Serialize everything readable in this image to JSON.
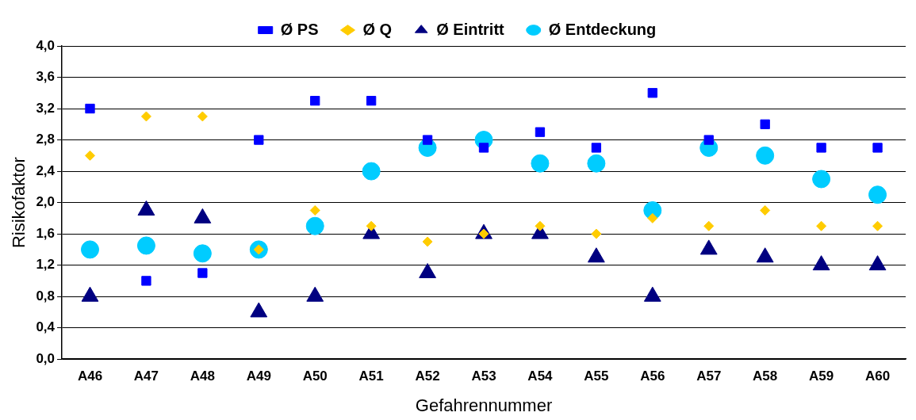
{
  "chart_data": {
    "type": "scatter",
    "xlabel": "Gefahrennummer",
    "ylabel": "Risikofaktor",
    "categories": [
      "A46",
      "A47",
      "A48",
      "A49",
      "A50",
      "A51",
      "A52",
      "A53",
      "A54",
      "A55",
      "A56",
      "A57",
      "A58",
      "A59",
      "A60"
    ],
    "series": [
      {
        "name": "Ø PS",
        "color": "#0000ff",
        "marker": "square",
        "values": [
          3.2,
          1.0,
          1.1,
          2.8,
          3.3,
          3.3,
          2.8,
          2.7,
          2.9,
          2.7,
          3.4,
          2.8,
          3.0,
          2.7,
          2.7
        ]
      },
      {
        "name": "Ø Q",
        "color": "#ffcc00",
        "marker": "diamond",
        "values": [
          2.6,
          3.1,
          3.1,
          1.4,
          1.9,
          1.7,
          1.5,
          1.6,
          1.7,
          1.6,
          1.8,
          1.7,
          1.9,
          1.7,
          1.7
        ]
      },
      {
        "name": "Ø Eintritt",
        "color": "#000080",
        "marker": "triangle",
        "values": [
          0.8,
          1.9,
          1.8,
          0.6,
          0.8,
          1.6,
          1.1,
          1.6,
          1.6,
          1.3,
          0.8,
          1.4,
          1.3,
          1.2,
          1.2
        ]
      },
      {
        "name": "Ø Entdeckung",
        "color": "#00ccff",
        "marker": "circle",
        "values": [
          1.4,
          1.45,
          1.35,
          1.4,
          1.7,
          2.4,
          2.7,
          2.8,
          2.5,
          2.5,
          1.9,
          2.7,
          2.6,
          2.3,
          2.1
        ]
      }
    ],
    "ylim": [
      0,
      4
    ],
    "yticks": [
      {
        "value": 0,
        "label": "0,0"
      },
      {
        "value": 0.4,
        "label": "0,4"
      },
      {
        "value": 0.8,
        "label": "0,8"
      },
      {
        "value": 1.2,
        "label": "1,2"
      },
      {
        "value": 1.6,
        "label": "1,6"
      },
      {
        "value": 2.0,
        "label": "2,0"
      },
      {
        "value": 2.4,
        "label": "2,4"
      },
      {
        "value": 2.8,
        "label": "2,8"
      },
      {
        "value": 3.2,
        "label": "3,2"
      },
      {
        "value": 3.6,
        "label": "3,6"
      },
      {
        "value": 4.0,
        "label": "4,0"
      }
    ],
    "grid": "y",
    "legend": "top"
  }
}
